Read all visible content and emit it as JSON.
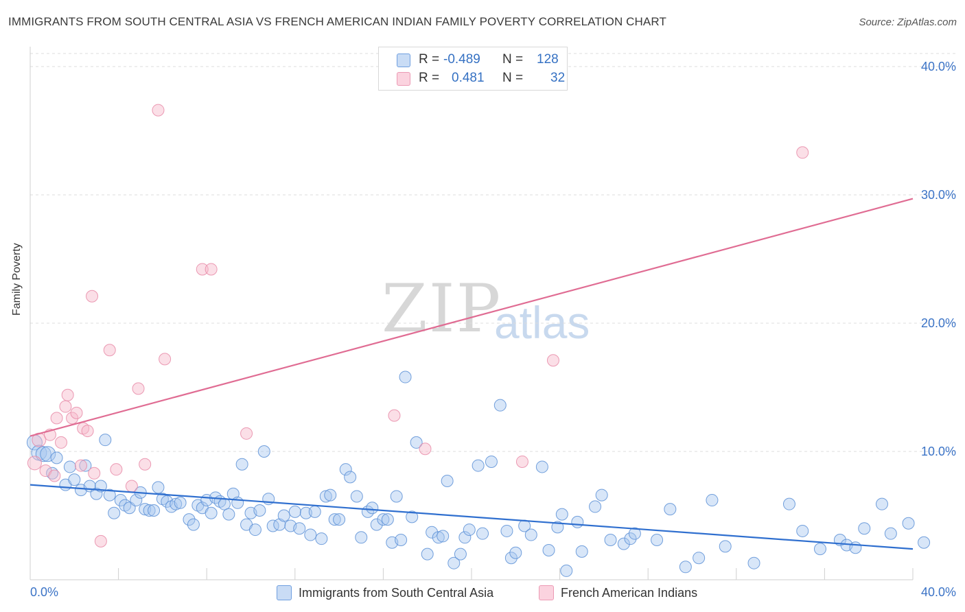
{
  "title": "IMMIGRANTS FROM SOUTH CENTRAL ASIA VS FRENCH AMERICAN INDIAN FAMILY POVERTY CORRELATION CHART",
  "source": "Source: ZipAtlas.com",
  "watermark": {
    "zip": "ZIP",
    "atlas": "atlas"
  },
  "legend_top": {
    "rows": [
      {
        "r_label": "R =",
        "r_value": "-0.489",
        "n_label": "N =",
        "n_value": "128",
        "color": "#a9c8f0"
      },
      {
        "r_label": "R =",
        "r_value": "0.481",
        "n_label": "N =",
        "n_value": "32",
        "color": "#f7b8ca"
      }
    ]
  },
  "chart_data": {
    "type": "scatter",
    "title": "IMMIGRANTS FROM SOUTH CENTRAL ASIA VS FRENCH AMERICAN INDIAN FAMILY POVERTY CORRELATION CHART",
    "xlabel": "",
    "ylabel": "Family Poverty",
    "xlim": [
      0,
      40
    ],
    "ylim": [
      0,
      40
    ],
    "x_tick_labels": {
      "min": "0.0%",
      "max": "40.0%"
    },
    "y_ticks": [
      10,
      20,
      30,
      40
    ],
    "y_tick_labels": [
      "10.0%",
      "20.0%",
      "30.0%",
      "40.0%"
    ],
    "grid": true,
    "legend_position": "bottom",
    "series": [
      {
        "name": "Immigrants from South Central Asia",
        "color": "#5b8fd6",
        "fill": "#a9c8f0",
        "trend": {
          "x": [
            0,
            40
          ],
          "y": [
            7.4,
            2.4
          ],
          "color": "#2f6fcf"
        },
        "points": [
          [
            0.2,
            10.7
          ],
          [
            0.4,
            9.9
          ],
          [
            0.6,
            9.8
          ],
          [
            0.8,
            9.8
          ],
          [
            1.0,
            8.3
          ],
          [
            1.2,
            9.5
          ],
          [
            1.6,
            7.4
          ],
          [
            1.8,
            8.8
          ],
          [
            2.0,
            7.8
          ],
          [
            2.3,
            7.0
          ],
          [
            2.5,
            8.9
          ],
          [
            2.7,
            7.3
          ],
          [
            3.0,
            6.7
          ],
          [
            3.2,
            7.3
          ],
          [
            3.4,
            10.9
          ],
          [
            3.6,
            6.6
          ],
          [
            3.8,
            5.2
          ],
          [
            4.1,
            6.2
          ],
          [
            4.3,
            5.8
          ],
          [
            4.5,
            5.6
          ],
          [
            4.8,
            6.2
          ],
          [
            5.0,
            6.8
          ],
          [
            5.2,
            5.5
          ],
          [
            5.4,
            5.4
          ],
          [
            5.6,
            5.4
          ],
          [
            5.8,
            7.2
          ],
          [
            6.0,
            6.3
          ],
          [
            6.2,
            6.1
          ],
          [
            6.4,
            5.7
          ],
          [
            6.6,
            5.9
          ],
          [
            6.8,
            6.0
          ],
          [
            7.2,
            4.7
          ],
          [
            7.4,
            4.3
          ],
          [
            7.6,
            5.8
          ],
          [
            7.8,
            5.6
          ],
          [
            8.0,
            6.2
          ],
          [
            8.2,
            5.2
          ],
          [
            8.4,
            6.4
          ],
          [
            8.6,
            6.1
          ],
          [
            8.8,
            5.9
          ],
          [
            9.0,
            5.1
          ],
          [
            9.2,
            6.7
          ],
          [
            9.4,
            6.0
          ],
          [
            9.6,
            9.0
          ],
          [
            9.8,
            4.3
          ],
          [
            10.0,
            5.2
          ],
          [
            10.2,
            3.9
          ],
          [
            10.4,
            5.4
          ],
          [
            10.6,
            10.0
          ],
          [
            10.8,
            6.3
          ],
          [
            11.0,
            4.2
          ],
          [
            11.3,
            4.3
          ],
          [
            11.5,
            5.0
          ],
          [
            11.8,
            4.2
          ],
          [
            12.0,
            5.3
          ],
          [
            12.2,
            4.0
          ],
          [
            12.5,
            5.2
          ],
          [
            12.7,
            3.5
          ],
          [
            12.9,
            5.3
          ],
          [
            13.2,
            3.2
          ],
          [
            13.4,
            6.5
          ],
          [
            13.6,
            6.6
          ],
          [
            13.8,
            4.7
          ],
          [
            14.0,
            4.7
          ],
          [
            14.3,
            8.6
          ],
          [
            14.5,
            8.0
          ],
          [
            14.8,
            6.5
          ],
          [
            15.0,
            3.3
          ],
          [
            15.3,
            5.3
          ],
          [
            15.5,
            5.6
          ],
          [
            15.7,
            4.3
          ],
          [
            16.0,
            4.7
          ],
          [
            16.2,
            4.7
          ],
          [
            16.4,
            2.9
          ],
          [
            16.6,
            6.5
          ],
          [
            16.8,
            3.1
          ],
          [
            17.0,
            15.8
          ],
          [
            17.3,
            4.9
          ],
          [
            17.5,
            10.7
          ],
          [
            18.0,
            2.0
          ],
          [
            18.2,
            3.7
          ],
          [
            18.5,
            3.3
          ],
          [
            18.7,
            3.4
          ],
          [
            18.9,
            7.7
          ],
          [
            19.2,
            1.3
          ],
          [
            19.5,
            2.0
          ],
          [
            19.7,
            3.3
          ],
          [
            19.9,
            3.9
          ],
          [
            20.3,
            8.9
          ],
          [
            20.5,
            3.6
          ],
          [
            20.9,
            9.2
          ],
          [
            21.3,
            13.6
          ],
          [
            21.6,
            3.8
          ],
          [
            21.8,
            1.7
          ],
          [
            22.0,
            2.1
          ],
          [
            22.4,
            4.2
          ],
          [
            22.7,
            3.5
          ],
          [
            23.2,
            8.8
          ],
          [
            23.5,
            2.3
          ],
          [
            23.9,
            4.1
          ],
          [
            24.1,
            5.1
          ],
          [
            24.3,
            0.7
          ],
          [
            24.8,
            4.5
          ],
          [
            25.0,
            2.2
          ],
          [
            25.6,
            5.7
          ],
          [
            25.9,
            6.6
          ],
          [
            26.3,
            3.1
          ],
          [
            26.9,
            2.8
          ],
          [
            27.2,
            3.2
          ],
          [
            27.4,
            3.6
          ],
          [
            28.4,
            3.1
          ],
          [
            29.0,
            5.5
          ],
          [
            29.7,
            1.0
          ],
          [
            30.3,
            1.7
          ],
          [
            30.9,
            6.2
          ],
          [
            31.5,
            2.6
          ],
          [
            32.8,
            1.3
          ],
          [
            34.4,
            5.9
          ],
          [
            35.0,
            3.8
          ],
          [
            35.8,
            2.4
          ],
          [
            36.7,
            3.1
          ],
          [
            37.0,
            2.7
          ],
          [
            37.4,
            2.5
          ],
          [
            37.8,
            4.0
          ],
          [
            38.6,
            5.9
          ],
          [
            39.0,
            3.6
          ],
          [
            39.8,
            4.4
          ],
          [
            40.5,
            2.9
          ]
        ]
      },
      {
        "name": "French American Indians",
        "color": "#e88aa7",
        "fill": "#f7b8ca",
        "trend": {
          "x": [
            0,
            40
          ],
          "y": [
            11.2,
            29.7
          ],
          "color": "#e06c93"
        },
        "points": [
          [
            0.2,
            9.1
          ],
          [
            0.4,
            10.9
          ],
          [
            0.7,
            8.5
          ],
          [
            0.9,
            11.3
          ],
          [
            1.1,
            8.1
          ],
          [
            1.2,
            12.6
          ],
          [
            1.4,
            10.7
          ],
          [
            1.6,
            13.5
          ],
          [
            1.7,
            14.4
          ],
          [
            1.9,
            12.6
          ],
          [
            2.1,
            13.0
          ],
          [
            2.3,
            8.9
          ],
          [
            2.4,
            11.8
          ],
          [
            2.6,
            11.6
          ],
          [
            2.8,
            22.1
          ],
          [
            2.9,
            8.3
          ],
          [
            3.2,
            3.0
          ],
          [
            3.6,
            17.9
          ],
          [
            3.9,
            8.6
          ],
          [
            4.6,
            7.3
          ],
          [
            4.9,
            14.9
          ],
          [
            5.2,
            9.0
          ],
          [
            5.8,
            36.6
          ],
          [
            6.1,
            17.2
          ],
          [
            7.8,
            24.2
          ],
          [
            8.2,
            24.2
          ],
          [
            9.8,
            11.4
          ],
          [
            16.5,
            12.8
          ],
          [
            17.9,
            10.2
          ],
          [
            22.3,
            9.2
          ],
          [
            23.7,
            17.1
          ],
          [
            35.0,
            33.3
          ]
        ]
      }
    ]
  },
  "legend_bottom": [
    {
      "label": "Immigrants from South Central Asia",
      "color": "#a9c8f0"
    },
    {
      "label": "French American Indians",
      "color": "#f7b8ca"
    }
  ]
}
